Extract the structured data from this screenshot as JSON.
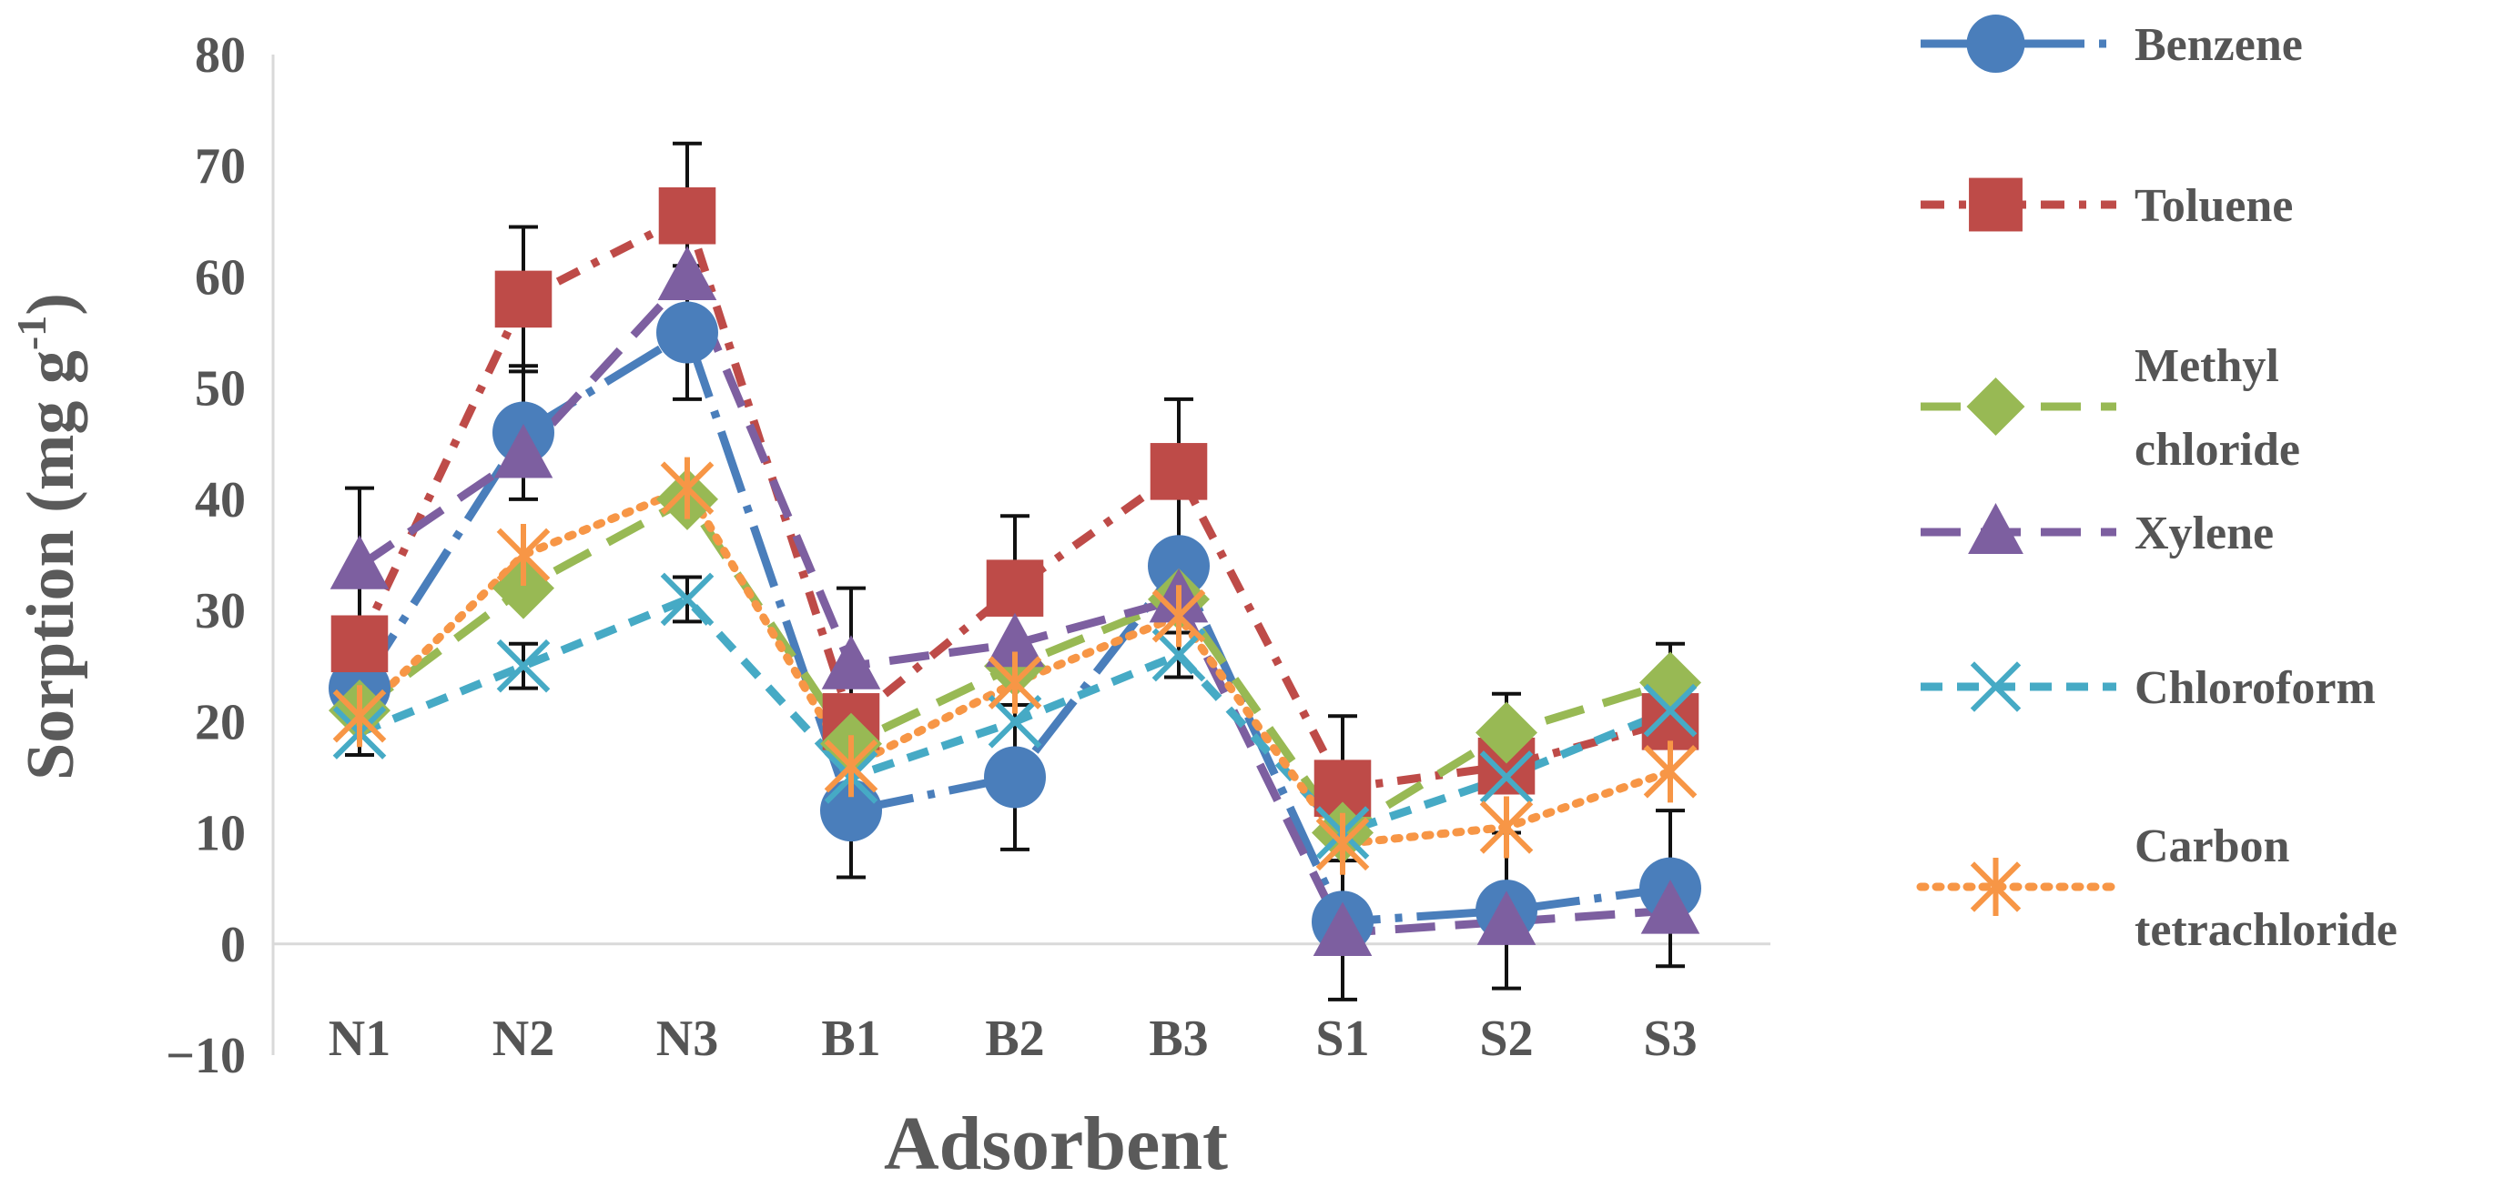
{
  "chart_data": {
    "type": "line",
    "title": "",
    "xlabel": "Adsorbent",
    "ylabel": "Sorption (mg g",
    "ylabel_superscript": "-1",
    "ylabel_suffix": ")",
    "ylim": [
      -10,
      80
    ],
    "yticks": [
      80,
      70,
      60,
      50,
      40,
      30,
      20,
      10,
      0,
      -10
    ],
    "ytick_labels": [
      "80",
      "70",
      "60",
      "50",
      "40",
      "30",
      "20",
      "10",
      "0",
      "−10"
    ],
    "categories": [
      "N1",
      "N2",
      "N3",
      "B1",
      "B2",
      "B3",
      "S1",
      "S2",
      "S3"
    ],
    "legend_position": "right",
    "series": [
      {
        "name": "Benzene",
        "legend_lines": [
          "Benzene"
        ],
        "color": "#4a7ebb",
        "dash": "solid-dashdot",
        "marker": "circle",
        "values": [
          23,
          46,
          55,
          12,
          15,
          34,
          2,
          3,
          5
        ],
        "errors": [
          0,
          6,
          6,
          6,
          6.5,
          0,
          7,
          7,
          7
        ]
      },
      {
        "name": "Toluene",
        "legend_lines": [
          "Toluene"
        ],
        "color": "#be4b48",
        "dash": "dashdot",
        "marker": "square",
        "values": [
          27,
          58,
          65.5,
          20,
          32,
          42.5,
          14,
          16,
          20
        ],
        "errors": [
          0,
          6.5,
          6.5,
          0,
          6.5,
          6.5,
          6.5,
          0,
          0
        ]
      },
      {
        "name": "Methyl chloride",
        "legend_lines": [
          "Methyl",
          "chloride"
        ],
        "color": "#98b954",
        "dash": "longdash",
        "marker": "diamond",
        "values": [
          21,
          32,
          40,
          18,
          25,
          31,
          10,
          19,
          23.5
        ],
        "errors": [
          0,
          0,
          0,
          0,
          0,
          0,
          0,
          3.5,
          3.5
        ]
      },
      {
        "name": "Xylene",
        "legend_lines": [
          "Xylene"
        ],
        "color": "#7d5fa0",
        "dash": "longdash",
        "marker": "triangle",
        "values": [
          34,
          44,
          60,
          25,
          27,
          31,
          1,
          2,
          3
        ],
        "errors": [
          7,
          0,
          0,
          7,
          0,
          0,
          0,
          0,
          0
        ]
      },
      {
        "name": "Chloroform",
        "legend_lines": [
          "Chloroform"
        ],
        "color": "#46aac5",
        "dash": "dash",
        "marker": "x",
        "values": [
          19,
          25,
          31,
          15,
          20,
          26,
          10,
          15,
          21
        ],
        "errors": [
          2,
          2,
          2,
          0,
          0,
          2,
          0,
          0,
          0
        ]
      },
      {
        "name": "Carbon tetrachloride",
        "legend_lines": [
          "Carbon",
          "tetrachloride"
        ],
        "color": "#f79646",
        "dash": "dot",
        "marker": "asterisk",
        "values": [
          20.5,
          35,
          41,
          16,
          23.5,
          29.5,
          9,
          10.5,
          15.5
        ],
        "errors": [
          0,
          0,
          0,
          0,
          0,
          0,
          0,
          0,
          0
        ]
      }
    ]
  }
}
